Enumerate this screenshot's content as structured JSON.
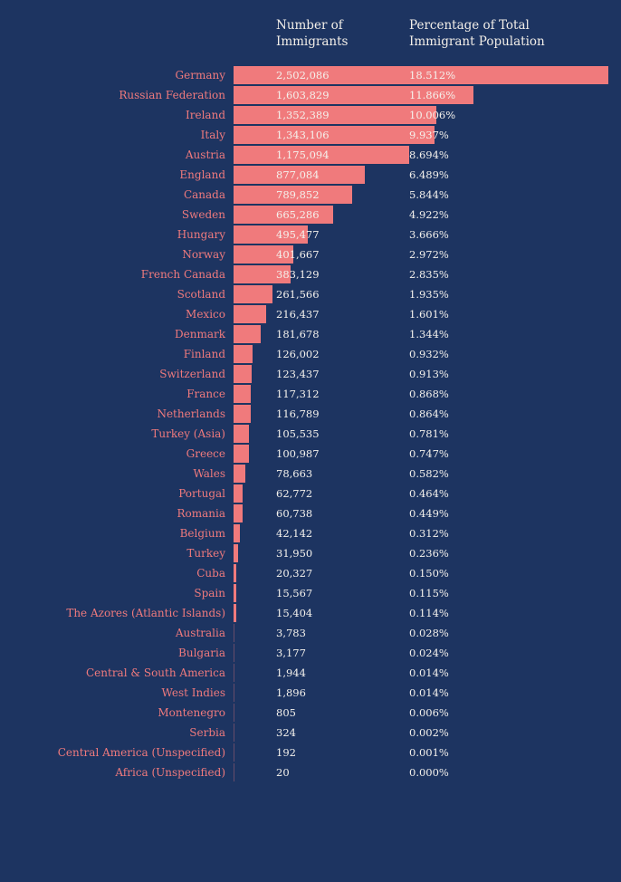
{
  "colors": {
    "background": "#1d3461",
    "bar": "#f07a7c",
    "label": "#ef7a7d",
    "text": "#f4f1ec"
  },
  "chart_data": {
    "type": "bar",
    "orientation": "horizontal",
    "headers": {
      "number": "Number of\nImmigrants",
      "percentage": "Percentage of Total\nImmigrant Population"
    },
    "categories": [
      "Germany",
      "Russian Federation",
      "Ireland",
      "Italy",
      "Austria",
      "England",
      "Canada",
      "Sweden",
      "Hungary",
      "Norway",
      "French Canada",
      "Scotland",
      "Mexico",
      "Denmark",
      "Finland",
      "Switzerland",
      "France",
      "Netherlands",
      "Turkey (Asia)",
      "Greece",
      "Wales",
      "Portugal",
      "Romania",
      "Belgium",
      "Turkey",
      "Cuba",
      "Spain",
      "The Azores (Atlantic Islands)",
      "Australia",
      "Bulgaria",
      "Central & South America",
      "West Indies",
      "Montenegro",
      "Serbia",
      "Central America (Unspecified)",
      "Africa (Unspecified)"
    ],
    "values": [
      2502086,
      1603829,
      1352389,
      1343106,
      1175094,
      877084,
      789852,
      665286,
      495477,
      401667,
      383129,
      261566,
      216437,
      181678,
      126002,
      123437,
      117312,
      116789,
      105535,
      100987,
      78663,
      62772,
      60738,
      42142,
      31950,
      20327,
      15567,
      15404,
      3783,
      3177,
      1944,
      1896,
      805,
      324,
      192,
      20
    ],
    "value_labels": [
      "2,502,086",
      "1,603,829",
      "1,352,389",
      "1,343,106",
      "1,175,094",
      "877,084",
      "789,852",
      "665,286",
      "495,477",
      "401,667",
      "383,129",
      "261,566",
      "216,437",
      "181,678",
      "126,002",
      "123,437",
      "117,312",
      "116,789",
      "105,535",
      "100,987",
      "78,663",
      "62,772",
      "60,738",
      "42,142",
      "31,950",
      "20,327",
      "15,567",
      "15,404",
      "3,783",
      "3,177",
      "1,944",
      "1,896",
      "805",
      "324",
      "192",
      "20"
    ],
    "percent_labels": [
      "18.512%",
      "11.866%",
      "10.006%",
      "9.937%",
      "8.694%",
      "6.489%",
      "5.844%",
      "4.922%",
      "3.666%",
      "2.972%",
      "2.835%",
      "1.935%",
      "1.601%",
      "1.344%",
      "0.932%",
      "0.913%",
      "0.868%",
      "0.864%",
      "0.781%",
      "0.747%",
      "0.582%",
      "0.464%",
      "0.449%",
      "0.312%",
      "0.236%",
      "0.150%",
      "0.115%",
      "0.114%",
      "0.028%",
      "0.024%",
      "0.014%",
      "0.014%",
      "0.006%",
      "0.002%",
      "0.001%",
      "0.000%"
    ],
    "title": "",
    "xlabel": "",
    "ylabel": "",
    "xlim": [
      0,
      2502086
    ],
    "grid": false,
    "legend": "none"
  }
}
